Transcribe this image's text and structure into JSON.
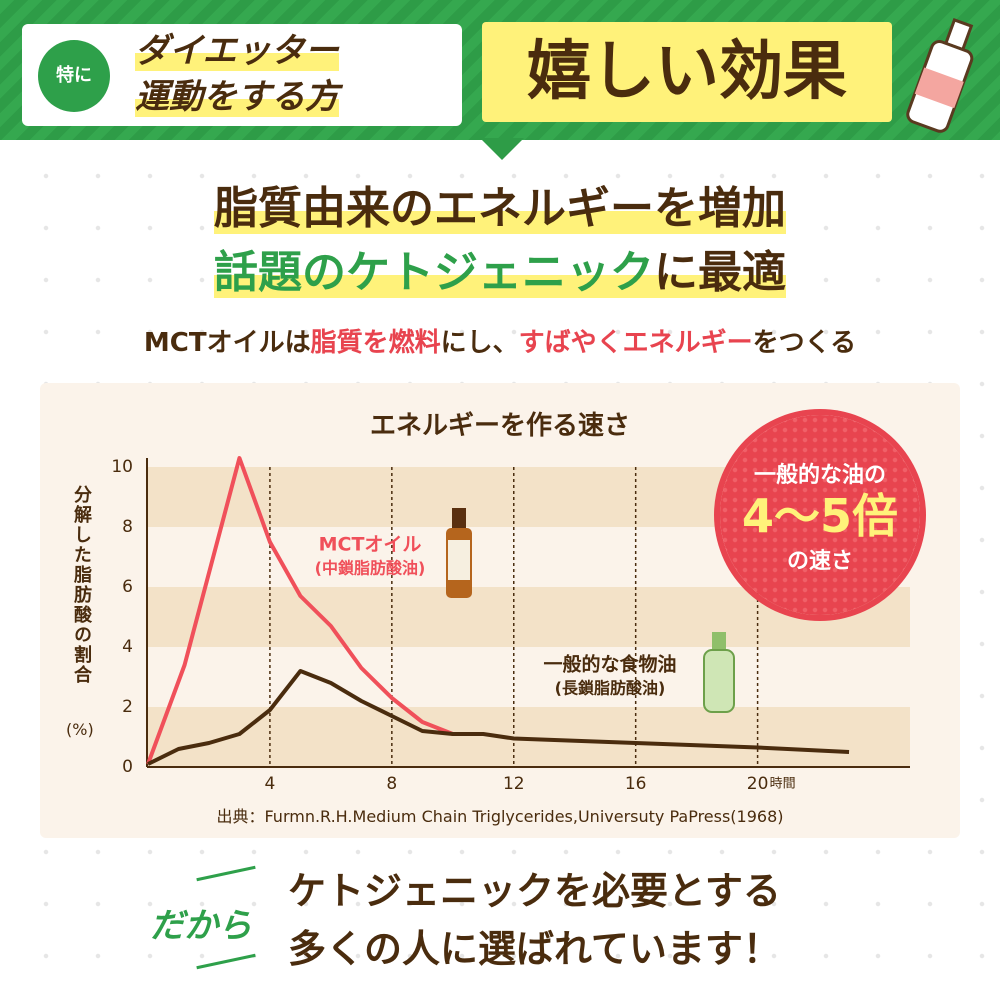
{
  "header": {
    "badge": "特に",
    "target_lines": [
      "ダイエッター",
      "運動をする方"
    ],
    "particle": "に",
    "headline": "嬉しい効果"
  },
  "lead": {
    "line1": "脂質由来のエネルギーを増加",
    "line2": [
      {
        "text": "話題のケトジェニック",
        "color": "#2ea04a"
      },
      {
        "text": "に最適",
        "color": "#4a2c0e"
      }
    ]
  },
  "subtitle": [
    {
      "text": "MCTオイルは",
      "color": "#4a2c0e"
    },
    {
      "text": "脂質を燃料",
      "color": "#e8444f"
    },
    {
      "text": "にし、",
      "color": "#4a2c0e"
    },
    {
      "text": "すばやくエネルギー",
      "color": "#e8444f"
    },
    {
      "text": "をつくる",
      "color": "#4a2c0e"
    }
  ],
  "chart_data": {
    "type": "line",
    "title": "エネルギーを作る速さ",
    "y_label": "分解した脂肪酸の割合",
    "y_unit": "(%)",
    "x_unit": "時間",
    "xlim": [
      0,
      25
    ],
    "ylim": [
      0,
      10.5
    ],
    "xticks": [
      4,
      8,
      12,
      16,
      20
    ],
    "yticks": [
      0,
      2,
      4,
      6,
      8,
      10
    ],
    "grid": true,
    "series": [
      {
        "name": "MCTオイル",
        "subname": "(中鎖脂肪酸油)",
        "color": "#f0505a",
        "x": [
          0,
          1.2,
          3,
          4,
          5,
          6,
          7,
          8,
          9,
          10
        ],
        "values": [
          0.1,
          3.4,
          10.3,
          7.5,
          5.7,
          4.7,
          3.3,
          2.3,
          1.5,
          1.1
        ]
      },
      {
        "name": "一般的な食物油",
        "subname": "(長鎖脂肪酸油)",
        "color": "#4a2c0e",
        "x": [
          0,
          1,
          2,
          3,
          4,
          5,
          6,
          7,
          8,
          9,
          10,
          11,
          12,
          16,
          20,
          23
        ],
        "values": [
          0.1,
          0.6,
          0.8,
          1.1,
          1.9,
          3.2,
          2.8,
          2.2,
          1.7,
          1.2,
          1.1,
          1.1,
          0.95,
          0.8,
          0.65,
          0.5
        ]
      }
    ],
    "callout": [
      "一般的な油の",
      "4〜5倍",
      "の速さ"
    ],
    "source": "出典：Furmn.R.H.Medium Chain Triglycerides,Universuty PaPress(1968)"
  },
  "footer": {
    "lead": "だから",
    "lines": [
      "ケトジェニックを必要とする",
      "多くの人に選ばれています！"
    ]
  }
}
